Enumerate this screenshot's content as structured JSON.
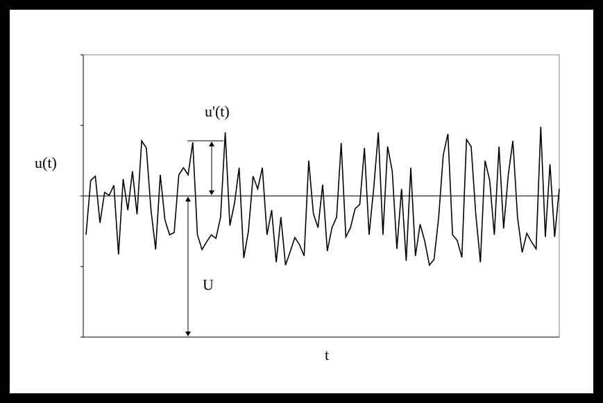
{
  "chart_data": {
    "type": "line",
    "title": "",
    "xlabel": "t",
    "ylabel": "u(t)",
    "ylim": [
      -2,
      2
    ],
    "yticks": [
      -2,
      -1,
      0,
      1,
      2
    ],
    "mean_value": 0,
    "grid": false,
    "annotations": {
      "fluctuation_label": "u'(t)",
      "mean_label": "U"
    },
    "series": [
      {
        "values": [
          -0.55,
          0.22,
          0.28,
          -0.38,
          0.05,
          0.01,
          0.15,
          -0.83,
          0.24,
          -0.2,
          0.35,
          -0.26,
          0.78,
          0.68,
          -0.2,
          -0.76,
          0.3,
          -0.34,
          -0.55,
          -0.52,
          0.3,
          0.4,
          0.3,
          0.76,
          -0.55,
          -0.76,
          -0.65,
          -0.55,
          -0.6,
          -0.3,
          0.9,
          -0.42,
          -0.1,
          0.4,
          -0.88,
          -0.5,
          0.28,
          0.1,
          0.4,
          -0.55,
          -0.2,
          -0.94,
          -0.3,
          -0.98,
          -0.79,
          -0.59,
          -0.69,
          -0.85,
          0.5,
          -0.25,
          -0.45,
          0.16,
          -0.78,
          -0.45,
          -0.3,
          0.75,
          -0.58,
          -0.45,
          -0.18,
          -0.12,
          0.68,
          -0.55,
          0.1,
          0.9,
          -0.55,
          0.7,
          0.35,
          -0.75,
          0.1,
          -0.92,
          0.4,
          -0.85,
          -0.4,
          -0.64,
          -0.98,
          -0.9,
          -0.3,
          0.58,
          0.88,
          -0.55,
          -0.63,
          -0.87,
          0.8,
          0.7,
          -0.25,
          -0.94,
          0.5,
          0.22,
          -0.55,
          0.7,
          -0.46,
          0.3,
          0.78,
          -0.3,
          -0.8,
          -0.53,
          -0.65,
          -0.75,
          0.98,
          -0.58,
          0.45,
          -0.58,
          0.1
        ]
      }
    ]
  }
}
